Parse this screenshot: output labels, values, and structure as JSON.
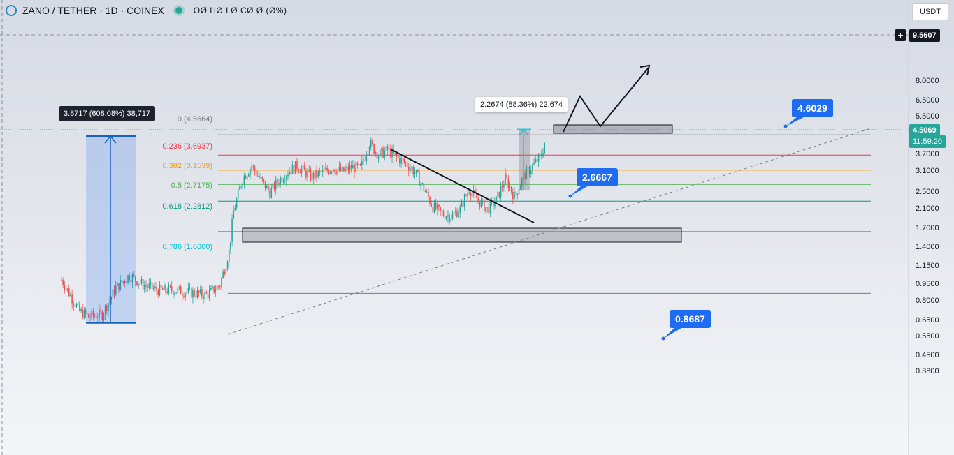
{
  "header": {
    "title": "ZANO / TETHER · 1D · COINEX",
    "ohlc": "OØ HØ LØ CØ Ø (Ø%)"
  },
  "currency_button": "USDT",
  "price_scale": {
    "crosshair_price": "9.5607",
    "last_price": "4.5069",
    "countdown": "11:59:20",
    "ticks": [
      "8.0000",
      "6.5000",
      "5.5000",
      "3.7000",
      "3.1000",
      "2.5000",
      "2.1000",
      "1.7000",
      "1.4000",
      "1.1500",
      "0.9500",
      "0.8000",
      "0.6500",
      "0.5500",
      "0.4500",
      "0.3800"
    ]
  },
  "fib_levels": [
    {
      "label": "0 (4.5664)",
      "value": 4.5664,
      "color": "#787b86"
    },
    {
      "label": "0.236 (3.6937)",
      "value": 3.6937,
      "color": "#f23645"
    },
    {
      "label": "0.382 (3.1539)",
      "value": 3.1539,
      "color": "#ff9800"
    },
    {
      "label": "0.5 (2.7175)",
      "value": 2.7175,
      "color": "#4caf50"
    },
    {
      "label": "0.618 (2.2812)",
      "value": 2.2812,
      "color": "#089981"
    },
    {
      "label": "0.786 (1.6600)",
      "value": 1.66,
      "color": "#00bcd4"
    }
  ],
  "callouts": [
    {
      "label": "4.6029",
      "value": 4.6029
    },
    {
      "label": "2.6667",
      "value": 2.6667
    },
    {
      "label": "0.8687",
      "value": 0.8687
    }
  ],
  "measures": [
    {
      "label": "3.8717 (608.08%) 38,717",
      "from": 0.637,
      "to": 4.5087
    },
    {
      "label": "2.2674 (88.36%) 22,674",
      "from": 2.566,
      "to": 4.8334
    }
  ],
  "colors": {
    "up": "#26a69a",
    "down": "#ef5350",
    "accent": "#1e6cf2",
    "measure_blue": "#1565c0",
    "measure_cyan": "#26c6da"
  },
  "chart_data": {
    "type": "candlestick",
    "title": "ZANO / TETHER · 1D · COINEX",
    "yscale": "log",
    "ylim": [
      0.36,
      11.5
    ],
    "legend": "none",
    "grid": false,
    "series": [
      {
        "name": "ZANO/USDT",
        "approx_close_path": [
          [
            0,
            1.0
          ],
          [
            2,
            0.85
          ],
          [
            4,
            0.72
          ],
          [
            6,
            0.68
          ],
          [
            9,
            0.7
          ],
          [
            12,
            0.92
          ],
          [
            15,
            1.05
          ],
          [
            18,
            0.95
          ],
          [
            21,
            0.9
          ],
          [
            24,
            0.9
          ],
          [
            28,
            0.88
          ],
          [
            32,
            0.85
          ],
          [
            35,
            0.95
          ],
          [
            37,
            1.35
          ],
          [
            38,
            2.05
          ],
          [
            40,
            2.9
          ],
          [
            42,
            3.3
          ],
          [
            44,
            2.85
          ],
          [
            46,
            2.5
          ],
          [
            48,
            2.85
          ],
          [
            50,
            3.1
          ],
          [
            52,
            3.3
          ],
          [
            55,
            2.95
          ],
          [
            58,
            3.1
          ],
          [
            60,
            3.25
          ],
          [
            62,
            3.1
          ],
          [
            64,
            3.25
          ],
          [
            66,
            3.2
          ],
          [
            68,
            4.2
          ],
          [
            70,
            3.7
          ],
          [
            72,
            3.9
          ],
          [
            74,
            3.6
          ],
          [
            76,
            3.4
          ],
          [
            78,
            3.1
          ],
          [
            80,
            2.6
          ],
          [
            82,
            2.15
          ],
          [
            84,
            2.0
          ],
          [
            86,
            1.95
          ],
          [
            88,
            2.1
          ],
          [
            90,
            2.6
          ],
          [
            92,
            2.3
          ],
          [
            94,
            2.1
          ],
          [
            96,
            2.3
          ],
          [
            98,
            2.9
          ],
          [
            100,
            2.4
          ],
          [
            102,
            2.95
          ],
          [
            104,
            3.3
          ],
          [
            106,
            3.7
          ],
          [
            107,
            4.5
          ]
        ]
      }
    ]
  }
}
